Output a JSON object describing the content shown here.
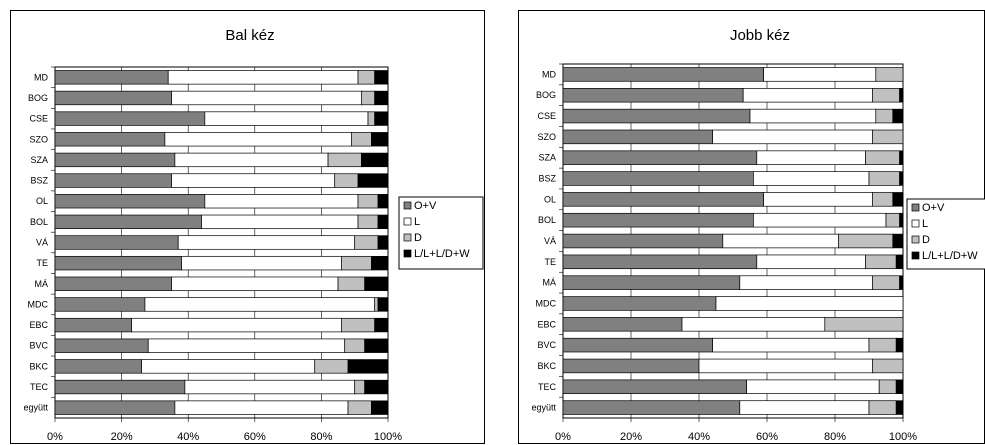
{
  "chart_data": [
    {
      "type": "bar",
      "orientation": "horizontal",
      "stacked": "percent",
      "title": "Bal kéz",
      "categories": [
        "MD",
        "BOG",
        "CSE",
        "SZO",
        "SZA",
        "BSZ",
        "OL",
        "BOL",
        "VÁ",
        "TE",
        "MÁ",
        "MDC",
        "EBC",
        "BVC",
        "BKC",
        "TEC",
        "együtt"
      ],
      "series": [
        {
          "name": "O+V",
          "color": "#808080",
          "values": [
            34,
            35,
            45,
            33,
            36,
            35,
            45,
            44,
            37,
            38,
            35,
            27,
            23,
            28,
            26,
            39,
            36
          ]
        },
        {
          "name": "L",
          "color": "#ffffff",
          "values": [
            57,
            57,
            49,
            56,
            46,
            49,
            46,
            47,
            53,
            48,
            50,
            69,
            63,
            59,
            52,
            51,
            52
          ]
        },
        {
          "name": "D",
          "color": "#c0c0c0",
          "values": [
            5,
            4,
            2,
            6,
            10,
            7,
            6,
            6,
            7,
            9,
            8,
            1,
            10,
            6,
            10,
            3,
            7
          ]
        },
        {
          "name": "L/L+L/D+W",
          "color": "#000000",
          "values": [
            4,
            4,
            4,
            5,
            8,
            9,
            3,
            3,
            3,
            5,
            7,
            3,
            4,
            7,
            12,
            7,
            5
          ]
        }
      ],
      "xlim": [
        0,
        100
      ],
      "xticks": [
        "0%",
        "20%",
        "40%",
        "60%",
        "80%",
        "100%"
      ],
      "grid": true,
      "legend": "right"
    },
    {
      "type": "bar",
      "orientation": "horizontal",
      "stacked": "percent",
      "title": "Jobb kéz",
      "categories": [
        "MD",
        "BOG",
        "CSE",
        "SZO",
        "SZA",
        "BSZ",
        "OL",
        "BOL",
        "VÁ",
        "TE",
        "MÁ",
        "MDC",
        "EBC",
        "BVC",
        "BKC",
        "TEC",
        "együtt"
      ],
      "series": [
        {
          "name": "O+V",
          "color": "#808080",
          "values": [
            59,
            53,
            55,
            44,
            57,
            56,
            59,
            56,
            47,
            57,
            52,
            45,
            35,
            44,
            40,
            54,
            52
          ]
        },
        {
          "name": "L",
          "color": "#ffffff",
          "values": [
            33,
            38,
            37,
            47,
            32,
            34,
            32,
            39,
            34,
            32,
            39,
            55,
            42,
            46,
            51,
            39,
            38
          ]
        },
        {
          "name": "D",
          "color": "#c0c0c0",
          "values": [
            8,
            8,
            5,
            9,
            10,
            9,
            6,
            4,
            16,
            9,
            8,
            0,
            23,
            8,
            9,
            5,
            8
          ]
        },
        {
          "name": "L/L+L/D+W",
          "color": "#000000",
          "values": [
            0,
            1,
            3,
            0,
            1,
            1,
            3,
            1,
            3,
            2,
            1,
            0,
            0,
            2,
            0,
            2,
            2
          ]
        }
      ],
      "xlim": [
        0,
        100
      ],
      "xticks": [
        "0%",
        "20%",
        "40%",
        "60%",
        "80%",
        "100%"
      ],
      "grid": true,
      "legend": "right"
    }
  ]
}
